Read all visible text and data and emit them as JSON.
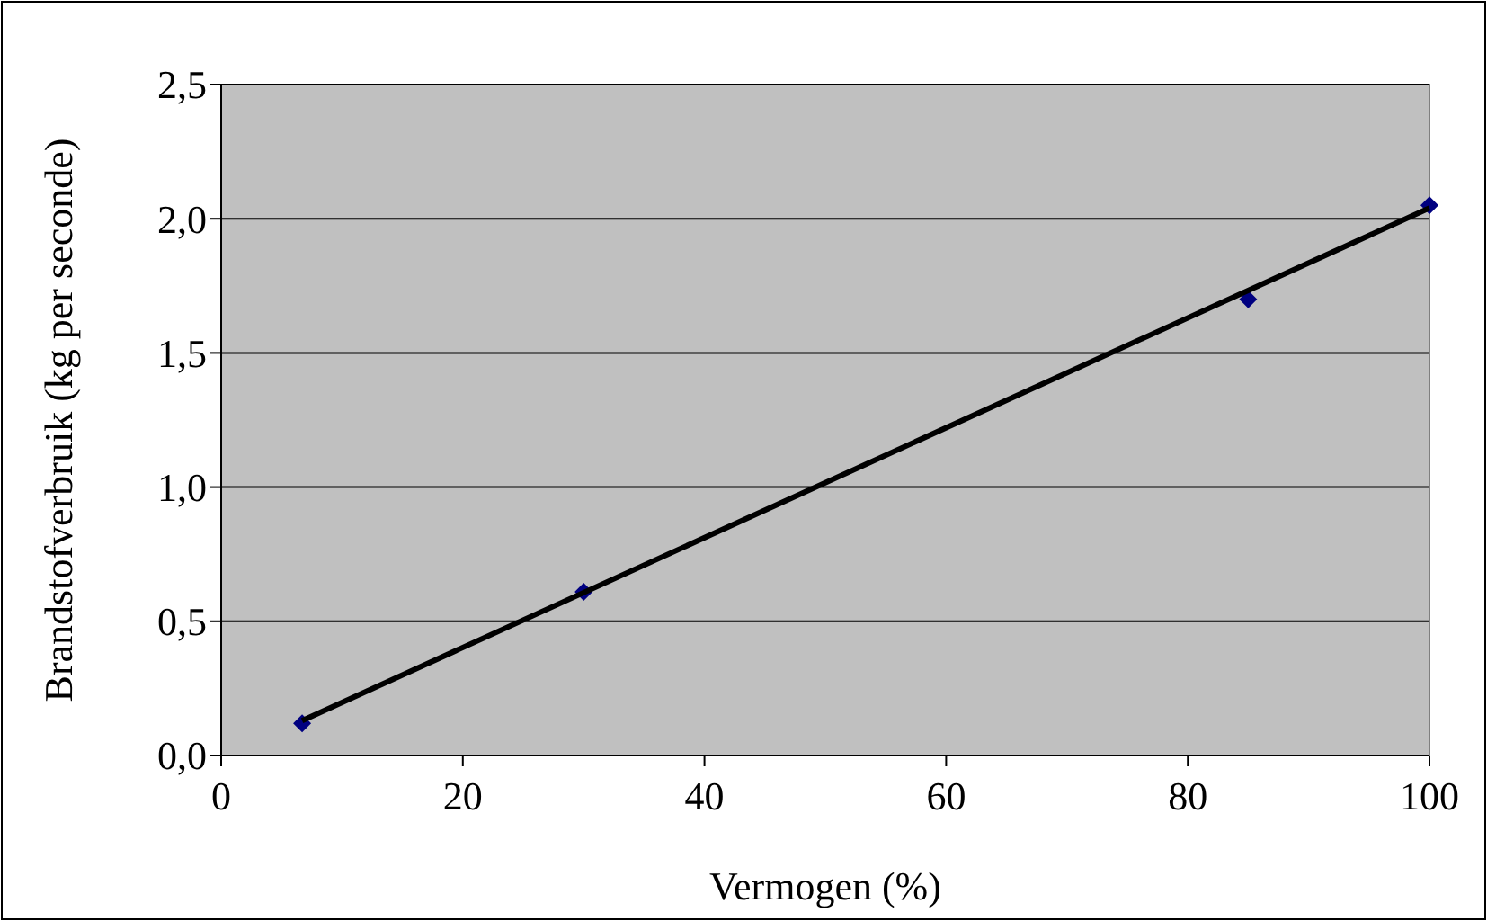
{
  "chart_data": {
    "type": "scatter",
    "xlabel": "Vermogen (%)",
    "ylabel": "Brandstofverbruik (kg per seconde)",
    "xlim": [
      0,
      100
    ],
    "xticks": [
      0,
      20,
      40,
      60,
      80,
      100
    ],
    "ylim": [
      0,
      2.5
    ],
    "yticks": [
      {
        "value": 0,
        "label": "0,0"
      },
      {
        "value": 0.5,
        "label": "0,5"
      },
      {
        "value": 1,
        "label": "1,0"
      },
      {
        "value": 1.5,
        "label": "1,5"
      },
      {
        "value": 2,
        "label": "2,0"
      },
      {
        "value": 2.5,
        "label": "2,5"
      }
    ],
    "grid": "y",
    "legend": false,
    "series": [
      {
        "color": "#000080",
        "marker": "diamond",
        "x": [
          6.7,
          30,
          85,
          100
        ],
        "values": [
          0.12,
          0.61,
          1.7,
          2.05
        ]
      },
      {
        "type": "line",
        "color": "#000000",
        "marker": "none",
        "line_style": "solid",
        "x": [
          6.7,
          100
        ],
        "values": [
          0.13,
          2.04
        ]
      }
    ]
  }
}
